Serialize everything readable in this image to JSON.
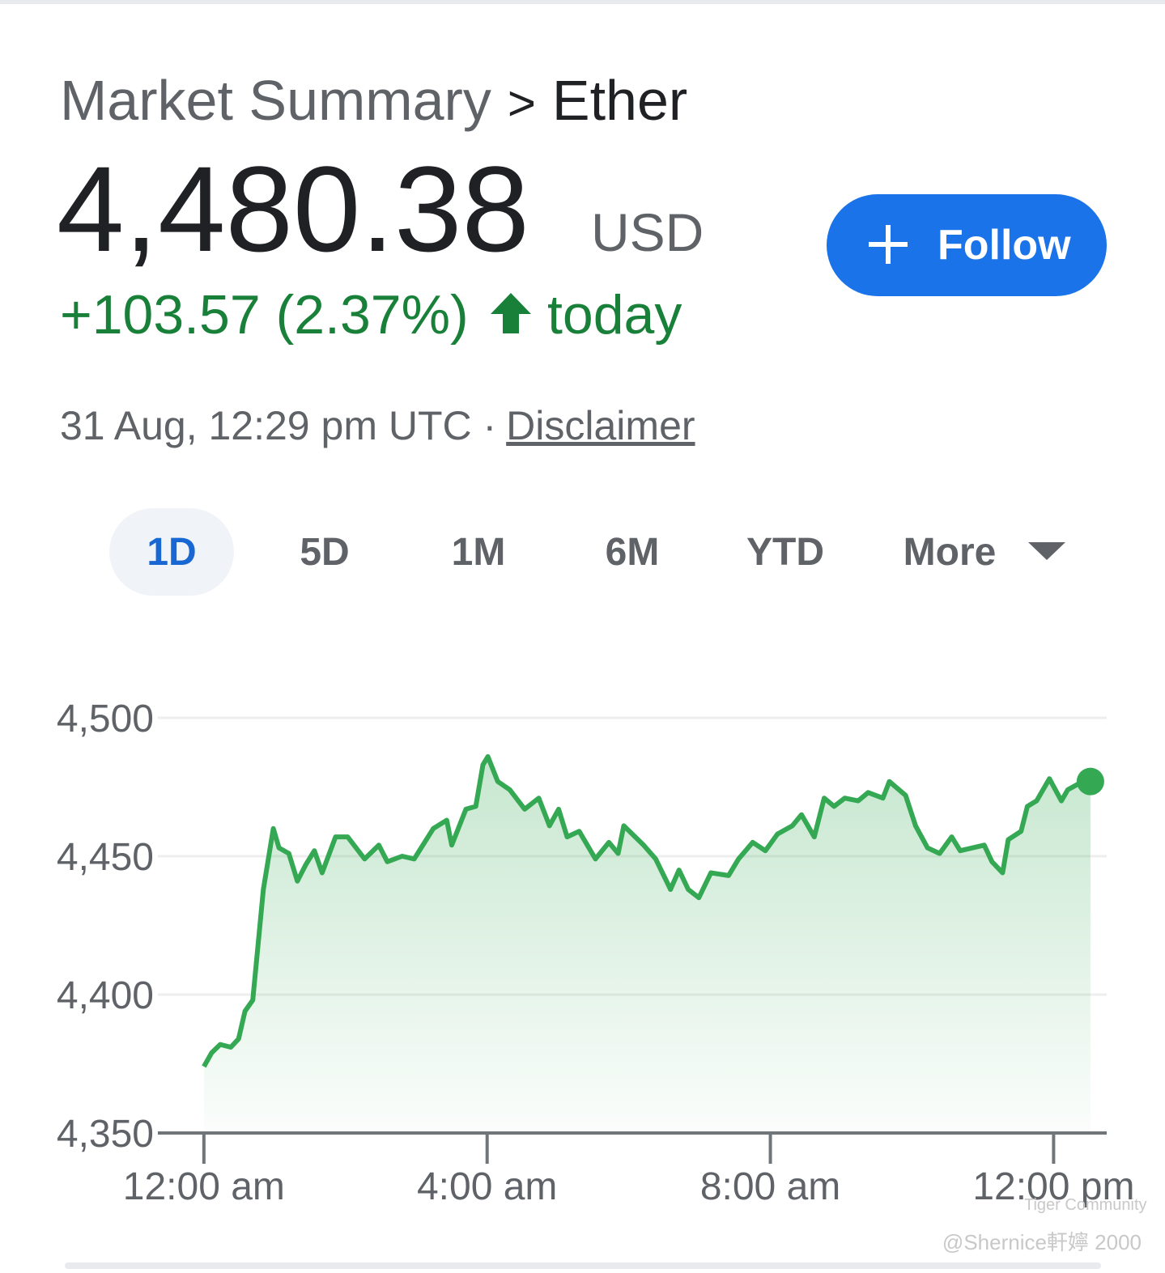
{
  "breadcrumb": {
    "parent": "Market Summary",
    "separator": ">",
    "current": "Ether"
  },
  "price": {
    "value": "4,480.38",
    "currency": "USD"
  },
  "change": {
    "text": "+103.57 (2.37%)",
    "period": "today"
  },
  "timestamp": "31 Aug, 12:29 pm UTC ·",
  "disclaimer": "Disclaimer",
  "follow_button": "Follow",
  "ranges": [
    "1D",
    "5D",
    "1M",
    "6M",
    "YTD",
    "More"
  ],
  "selected_range": "1D",
  "watermark": {
    "brand": "Tiger Community",
    "author": "@Shernice軒嬣 2000"
  },
  "chart_data": {
    "type": "line",
    "color": "#34a853",
    "x": [
      0,
      0.11,
      0.23,
      0.38,
      0.49,
      0.58,
      0.69,
      0.84,
      0.98,
      1.06,
      1.2,
      1.32,
      1.44,
      1.56,
      1.67,
      1.86,
      2.03,
      2.27,
      2.47,
      2.59,
      2.8,
      2.97,
      3.24,
      3.43,
      3.5,
      3.7,
      3.84,
      3.94,
      4.01,
      4.15,
      4.32,
      4.53,
      4.73,
      4.88,
      5.01,
      5.13,
      5.3,
      5.53,
      5.72,
      5.85,
      5.93,
      6.21,
      6.38,
      6.59,
      6.71,
      6.84,
      6.99,
      7.16,
      7.41,
      7.55,
      7.75,
      7.93,
      8.1,
      8.31,
      8.44,
      8.62,
      8.76,
      8.9,
      9.05,
      9.24,
      9.38,
      9.59,
      9.68,
      9.91,
      10.05,
      10.22,
      10.39,
      10.56,
      10.68,
      11.02,
      11.13,
      11.28,
      11.36,
      11.54,
      11.63,
      11.76,
      11.94,
      12.11,
      12.2,
      12.34,
      12.52
    ],
    "values": [
      4374,
      4379,
      4382,
      4381,
      4384,
      4394,
      4398,
      4438,
      4460,
      4453,
      4451,
      4441,
      4447,
      4452,
      4444,
      4457,
      4457,
      4449,
      4454,
      4448,
      4450,
      4449,
      4460,
      4463,
      4454,
      4467,
      4468,
      4483,
      4486,
      4477,
      4474,
      4467,
      4471,
      4461,
      4467,
      4457,
      4459,
      4449,
      4455,
      4451,
      4461,
      4454,
      4449,
      4438,
      4445,
      4438,
      4435,
      4444,
      4443,
      4449,
      4455,
      4452,
      4458,
      4461,
      4465,
      4457,
      4471,
      4468,
      4471,
      4470,
      4473,
      4471,
      4477,
      4472,
      4461,
      4453,
      4451,
      4457,
      4452,
      4454,
      4448,
      4444,
      4456,
      4459,
      4468,
      4470,
      4478,
      4470,
      4474,
      4476,
      4477
    ],
    "xlim": [
      -0.65,
      12.75
    ],
    "xticks": [
      {
        "value": 0,
        "label": "12:00 am"
      },
      {
        "value": 4,
        "label": "4:00 am"
      },
      {
        "value": 8,
        "label": "8:00 am"
      },
      {
        "value": 12,
        "label": "12:00 pm"
      }
    ],
    "ylim": [
      4350,
      4500
    ],
    "yticks": [
      {
        "value": 4350,
        "label": "4,350"
      },
      {
        "value": 4400,
        "label": "4,400"
      },
      {
        "value": 4450,
        "label": "4,450"
      },
      {
        "value": 4500,
        "label": "4,500"
      }
    ],
    "grid": true
  }
}
